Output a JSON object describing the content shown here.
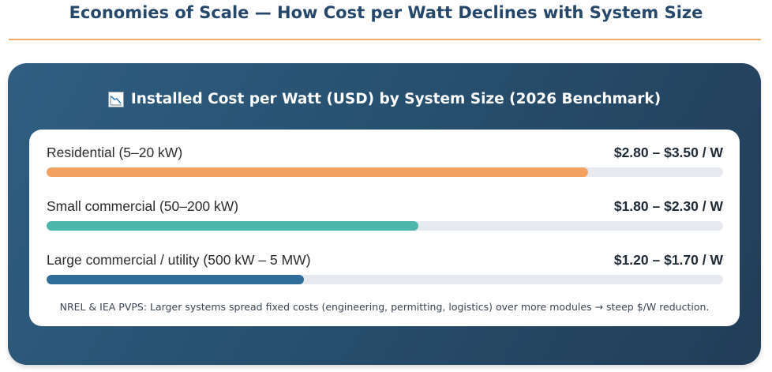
{
  "heading": "Economies of Scale — How Cost per Watt Declines with System Size",
  "panel": {
    "icon": "chart-decreasing-icon",
    "title": "Installed Cost per Watt (USD) by System Size (2026 Benchmark)",
    "footnote": "NREL & IEA PVPS: Larger systems spread fixed costs (engineering, permitting, logistics) over more modules → steep $/W reduction."
  },
  "colors": {
    "heading": "#24476a",
    "rule": "#f0a868",
    "track": "#e6e9ed"
  },
  "chart_data": {
    "type": "bar",
    "orientation": "horizontal",
    "title": "Installed Cost per Watt (USD) by System Size (2026 Benchmark)",
    "categories": [
      "Residential (5–20 kW)",
      "Small commercial (50–200 kW)",
      "Large commercial / utility (500 kW – 5 MW)"
    ],
    "value_labels": [
      "$2.80 – $3.50 / W",
      "$1.80 – $2.30 / W",
      "$1.20 – $1.70 / W"
    ],
    "ranges": [
      [
        2.8,
        3.5
      ],
      [
        1.8,
        2.3
      ],
      [
        1.2,
        1.7
      ]
    ],
    "bar_fill_fraction": [
      0.8,
      0.55,
      0.38
    ],
    "bar_colors": [
      "#f4a261",
      "#4db6ac",
      "#2f6e9c"
    ]
  }
}
